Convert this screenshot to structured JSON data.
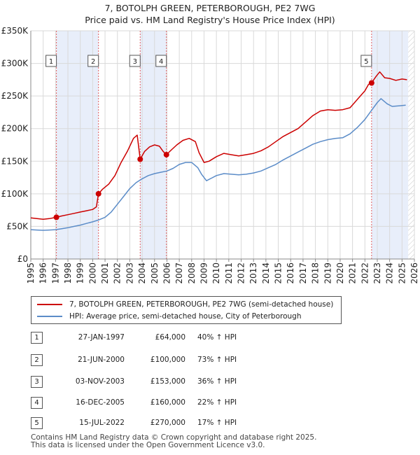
{
  "title": "7, BOTOLPH GREEN, PETERBOROUGH, PE2 7WG",
  "subtitle": "Price paid vs. HM Land Registry's House Price Index (HPI)",
  "colors": {
    "property": "#cc0000",
    "hpi": "#5b8cc8",
    "shade": "#e8eefa",
    "vline": "#e06060"
  },
  "chart_data": {
    "type": "line",
    "xlim": [
      1995,
      2026
    ],
    "ylim": [
      0,
      350000
    ],
    "y_ticks": [
      {
        "value": 0,
        "label": "£0"
      },
      {
        "value": 50000,
        "label": "£50K"
      },
      {
        "value": 100000,
        "label": "£100K"
      },
      {
        "value": 150000,
        "label": "£150K"
      },
      {
        "value": 200000,
        "label": "£200K"
      },
      {
        "value": 250000,
        "label": "£250K"
      },
      {
        "value": 300000,
        "label": "£300K"
      },
      {
        "value": 350000,
        "label": "£350K"
      }
    ],
    "x_ticks": [
      "1995",
      "1996",
      "1997",
      "1998",
      "1999",
      "2000",
      "2001",
      "2002",
      "2003",
      "2004",
      "2005",
      "2006",
      "2007",
      "2008",
      "2009",
      "2010",
      "2011",
      "2012",
      "2013",
      "2014",
      "2015",
      "2016",
      "2017",
      "2018",
      "2019",
      "2020",
      "2021",
      "2022",
      "2023",
      "2024",
      "2025",
      "2026"
    ],
    "shaded_spans": [
      [
        1997.07,
        2000.47
      ],
      [
        2003.84,
        2005.96
      ],
      [
        2022.54,
        2025.5
      ]
    ],
    "series": [
      {
        "name": "7, BOTOLPH GREEN, PETERBOROUGH, PE2 7WG (semi-detached house)",
        "x": [
          1995.0,
          1995.5,
          1996.0,
          1996.5,
          1997.07,
          1997.5,
          1998.0,
          1998.5,
          1999.0,
          1999.5,
          2000.0,
          2000.3,
          2000.47,
          2000.8,
          2001.3,
          2001.8,
          2002.3,
          2002.8,
          2003.3,
          2003.6,
          2003.84,
          2004.2,
          2004.6,
          2005.0,
          2005.4,
          2005.7,
          2005.96,
          2006.4,
          2006.8,
          2007.3,
          2007.8,
          2008.3,
          2008.6,
          2009.0,
          2009.4,
          2010.0,
          2010.6,
          2011.2,
          2011.8,
          2012.4,
          2013.0,
          2013.6,
          2014.2,
          2014.8,
          2015.4,
          2016.0,
          2016.6,
          2017.2,
          2017.8,
          2018.4,
          2019.0,
          2019.6,
          2020.2,
          2020.8,
          2021.4,
          2022.0,
          2022.3,
          2022.54,
          2022.9,
          2023.2,
          2023.6,
          2024.0,
          2024.5,
          2025.0,
          2025.4
        ],
        "y": [
          63000,
          62000,
          61000,
          62000,
          64000,
          66000,
          68000,
          70000,
          72000,
          74000,
          76000,
          80000,
          100000,
          107000,
          115000,
          128000,
          148000,
          165000,
          185000,
          190000,
          153000,
          165000,
          172000,
          175000,
          173000,
          165000,
          160000,
          168000,
          175000,
          182000,
          185000,
          180000,
          163000,
          148000,
          150000,
          157000,
          162000,
          160000,
          158000,
          160000,
          162000,
          166000,
          172000,
          180000,
          188000,
          194000,
          200000,
          210000,
          220000,
          227000,
          229000,
          228000,
          229000,
          232000,
          245000,
          258000,
          268000,
          270000,
          280000,
          287000,
          278000,
          277000,
          274000,
          276000,
          275000
        ]
      },
      {
        "name": "HPI: Average price, semi-detached house, City of Peterborough",
        "x": [
          1995.0,
          1995.5,
          1996.0,
          1996.5,
          1997.0,
          1997.5,
          1998.0,
          1998.5,
          1999.0,
          1999.5,
          2000.0,
          2000.5,
          2001.0,
          2001.5,
          2002.0,
          2002.5,
          2003.0,
          2003.5,
          2004.0,
          2004.5,
          2005.0,
          2005.5,
          2006.0,
          2006.5,
          2007.0,
          2007.5,
          2008.0,
          2008.5,
          2008.8,
          2009.2,
          2009.6,
          2010.0,
          2010.6,
          2011.2,
          2011.8,
          2012.4,
          2013.0,
          2013.6,
          2014.2,
          2014.8,
          2015.4,
          2016.0,
          2016.6,
          2017.2,
          2017.8,
          2018.4,
          2019.0,
          2019.6,
          2020.2,
          2020.8,
          2021.4,
          2022.0,
          2022.5,
          2023.0,
          2023.3,
          2023.8,
          2024.2,
          2024.8,
          2025.3
        ],
        "y": [
          45000,
          44500,
          44000,
          44500,
          45000,
          46500,
          48000,
          50000,
          52000,
          54500,
          57000,
          60000,
          64000,
          72000,
          84000,
          96000,
          108000,
          117000,
          123000,
          128000,
          131000,
          133000,
          135000,
          139000,
          145000,
          148000,
          148000,
          140000,
          130000,
          120000,
          124000,
          128000,
          131000,
          130000,
          129000,
          130000,
          132000,
          135000,
          140000,
          145000,
          152000,
          158000,
          164000,
          170000,
          176000,
          180000,
          183000,
          185000,
          186000,
          192000,
          202000,
          214000,
          227000,
          240000,
          246000,
          238000,
          234000,
          235000,
          236000
        ]
      }
    ],
    "sales": [
      {
        "label": "1",
        "x": 1997.07,
        "y": 64000
      },
      {
        "label": "2",
        "x": 2000.47,
        "y": 100000
      },
      {
        "label": "3",
        "x": 2003.84,
        "y": 153000
      },
      {
        "label": "4",
        "x": 2005.96,
        "y": 160000
      },
      {
        "label": "5",
        "x": 2022.54,
        "y": 270000
      }
    ]
  },
  "legend": {
    "property_label": "7, BOTOLPH GREEN, PETERBOROUGH, PE2 7WG (semi-detached house)",
    "hpi_label": "HPI: Average price, semi-detached house, City of Peterborough"
  },
  "transactions": [
    {
      "num": "1",
      "date": "27-JAN-1997",
      "price": "£64,000",
      "hpi": "40% ↑ HPI"
    },
    {
      "num": "2",
      "date": "21-JUN-2000",
      "price": "£100,000",
      "hpi": "73% ↑ HPI"
    },
    {
      "num": "3",
      "date": "03-NOV-2003",
      "price": "£153,000",
      "hpi": "36% ↑ HPI"
    },
    {
      "num": "4",
      "date": "16-DEC-2005",
      "price": "£160,000",
      "hpi": "22% ↑ HPI"
    },
    {
      "num": "5",
      "date": "15-JUL-2022",
      "price": "£270,000",
      "hpi": "17% ↑ HPI"
    }
  ],
  "footer": {
    "line1": "Contains HM Land Registry data © Crown copyright and database right 2025.",
    "line2": "This data is licensed under the Open Government Licence v3.0."
  }
}
